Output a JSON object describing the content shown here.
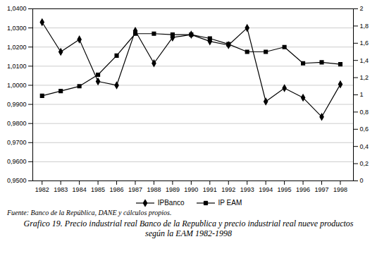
{
  "chart_data": {
    "type": "line",
    "title": "Grafico 19. Precio industrial real Banco de la Republica y precio industrial real nueve productos según la EAM 1982-1998",
    "source": "Fuente: Banco de la República, DANE y cálculos propios.",
    "x": [
      1982,
      1983,
      1984,
      1985,
      1986,
      1987,
      1988,
      1989,
      1990,
      1991,
      1992,
      1993,
      1994,
      1995,
      1996,
      1997,
      1998
    ],
    "series": [
      {
        "name": "IPBanco",
        "color": "#000000",
        "marker": "diamond",
        "values": [
          1.033,
          1.0175,
          1.024,
          1.002,
          1.0,
          1.0285,
          1.0115,
          1.025,
          1.0265,
          1.023,
          1.021,
          1.03,
          0.9915,
          0.9985,
          0.9935,
          0.9835,
          1.0005
        ]
      },
      {
        "name": "IP EAM",
        "color": "#000000",
        "marker": "square",
        "values": [
          0.9945,
          0.997,
          0.9995,
          1.0055,
          1.0155,
          1.027,
          1.027,
          1.0265,
          1.0265,
          1.0245,
          1.0215,
          1.0175,
          1.0175,
          1.02,
          1.0115,
          1.012,
          1.011
        ]
      }
    ],
    "xlim": [
      1981.5,
      1998.7
    ],
    "xticks": [
      1982,
      1983,
      1984,
      1985,
      1986,
      1987,
      1988,
      1989,
      1990,
      1991,
      1992,
      1993,
      1994,
      1995,
      1996,
      1997,
      1998
    ],
    "ylim": [
      0.95,
      1.04
    ],
    "yticks": [
      {
        "value": 0.95,
        "label": "0,9500"
      },
      {
        "value": 0.96,
        "label": "0,9600"
      },
      {
        "value": 0.97,
        "label": "0,9700"
      },
      {
        "value": 0.98,
        "label": "0,9800"
      },
      {
        "value": 0.99,
        "label": "0,9900"
      },
      {
        "value": 1.0,
        "label": "1,0000"
      },
      {
        "value": 1.01,
        "label": "1,0100"
      },
      {
        "value": 1.02,
        "label": "1,0200"
      },
      {
        "value": 1.03,
        "label": "1,0300"
      },
      {
        "value": 1.04,
        "label": "1,0400"
      }
    ],
    "y2lim": [
      0,
      2
    ],
    "y2ticks": [
      0,
      {
        "value": 0.2,
        "label": "0,2"
      },
      {
        "value": 0.4,
        "label": "0,4"
      },
      {
        "value": 0.6,
        "label": "0,6"
      },
      {
        "value": 0.8,
        "label": "0,8"
      },
      1,
      {
        "value": 1.2,
        "label": "1,2"
      },
      {
        "value": 1.4,
        "label": "1,4"
      },
      {
        "value": 1.6,
        "label": "1,6"
      },
      {
        "value": 1.8,
        "label": "1,8"
      },
      2
    ],
    "grid": true,
    "legend": "bottom"
  }
}
